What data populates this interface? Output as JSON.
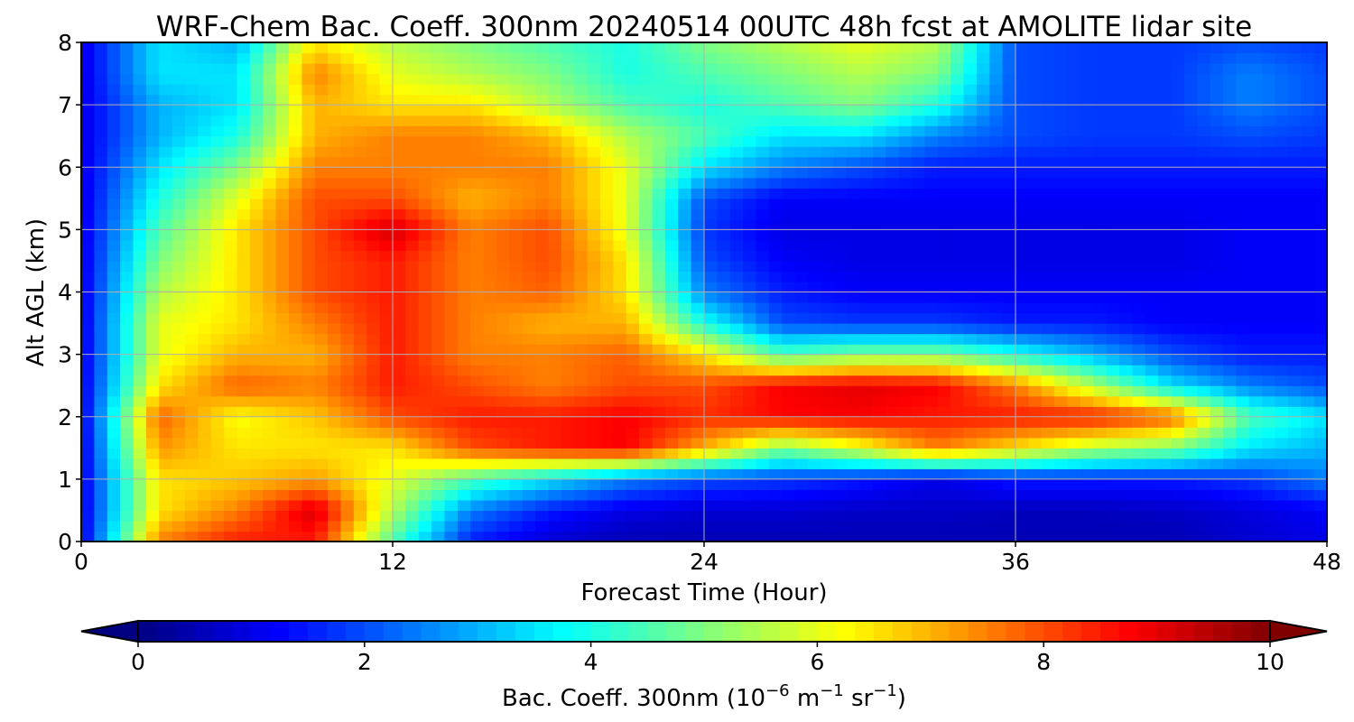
{
  "chart_data": {
    "type": "heatmap",
    "title": "WRF-Chem Bac. Coeff. 300nm  20240514 00UTC 48h fcst at AMOLITE lidar site",
    "xlabel": "Forecast Time (Hour)",
    "ylabel": "Alt AGL (km)",
    "xlim": [
      0,
      48
    ],
    "ylim": [
      0,
      8
    ],
    "x_ticks": [
      "0",
      "12",
      "24",
      "36",
      "48"
    ],
    "y_ticks": [
      "0",
      "1",
      "2",
      "3",
      "4",
      "5",
      "6",
      "7",
      "8"
    ],
    "grid": true,
    "colormap": "jet",
    "x": [
      0,
      3,
      6,
      9,
      12,
      15,
      18,
      21,
      24,
      27,
      30,
      33,
      36,
      39,
      42,
      45,
      48
    ],
    "y": [
      0,
      0.5,
      1,
      1.5,
      2,
      2.5,
      3,
      3.5,
      4,
      4.5,
      5,
      5.5,
      6,
      6.5,
      7,
      7.5,
      8
    ],
    "z": [
      [
        1.0,
        7.5,
        8.5,
        8.5,
        4.5,
        1.5,
        0.8,
        0.5,
        0.5,
        0.5,
        0.5,
        0.5,
        0.5,
        0.5,
        0.5,
        0.8,
        1.0
      ],
      [
        1.0,
        6.5,
        7.5,
        9.2,
        5.5,
        2.5,
        1.5,
        1.0,
        0.8,
        0.8,
        0.7,
        0.7,
        0.6,
        0.6,
        0.7,
        0.9,
        1.2
      ],
      [
        1.0,
        6.5,
        6.8,
        7.2,
        6.0,
        4.5,
        3.5,
        2.5,
        2.0,
        1.8,
        1.5,
        1.0,
        1.5,
        1.5,
        1.5,
        1.8,
        2.5
      ],
      [
        1.0,
        7.3,
        6.5,
        6.5,
        6.5,
        8.0,
        8.5,
        8.8,
        7.0,
        5.0,
        6.0,
        7.5,
        6.5,
        5.5,
        5.0,
        3.5,
        3.0
      ],
      [
        1.0,
        7.8,
        6.2,
        6.8,
        8.0,
        8.5,
        8.5,
        8.8,
        8.3,
        8.7,
        8.8,
        8.5,
        8.5,
        8.5,
        7.8,
        4.5,
        3.5
      ],
      [
        1.0,
        6.5,
        7.8,
        7.5,
        8.5,
        8.0,
        7.5,
        8.0,
        8.0,
        8.8,
        9.0,
        8.8,
        7.5,
        5.5,
        3.5,
        2.5,
        2.0
      ],
      [
        1.0,
        6.0,
        7.0,
        7.0,
        8.5,
        7.5,
        7.5,
        7.8,
        6.5,
        4.5,
        5.0,
        5.0,
        4.0,
        3.0,
        2.0,
        1.5,
        1.5
      ],
      [
        1.0,
        6.0,
        6.5,
        7.5,
        8.5,
        7.5,
        7.0,
        7.0,
        4.0,
        2.0,
        1.8,
        1.8,
        1.5,
        1.5,
        1.2,
        1.2,
        1.2
      ],
      [
        1.0,
        5.5,
        6.5,
        8.0,
        8.5,
        7.5,
        7.8,
        6.5,
        2.5,
        1.5,
        1.2,
        1.2,
        1.2,
        1.2,
        1.2,
        1.2,
        1.2
      ],
      [
        1.0,
        5.0,
        6.5,
        8.0,
        8.5,
        7.5,
        8.0,
        6.5,
        2.0,
        1.2,
        1.0,
        1.0,
        1.0,
        1.0,
        1.0,
        1.2,
        1.2
      ],
      [
        1.0,
        4.5,
        6.5,
        8.0,
        9.2,
        7.5,
        8.0,
        6.0,
        1.8,
        1.0,
        1.0,
        1.0,
        1.0,
        1.0,
        1.0,
        1.2,
        1.2
      ],
      [
        1.0,
        4.0,
        6.0,
        8.0,
        8.0,
        7.0,
        7.5,
        6.0,
        2.0,
        1.2,
        1.2,
        1.2,
        1.2,
        1.2,
        1.2,
        1.2,
        1.2
      ],
      [
        1.0,
        3.5,
        5.0,
        7.5,
        7.5,
        7.5,
        7.5,
        6.0,
        3.5,
        2.5,
        2.0,
        1.5,
        1.5,
        1.5,
        1.5,
        1.5,
        1.5
      ],
      [
        1.0,
        3.0,
        4.0,
        7.0,
        7.5,
        7.5,
        7.0,
        5.5,
        4.5,
        3.5,
        3.5,
        2.5,
        2.0,
        1.8,
        1.8,
        2.0,
        1.8
      ],
      [
        1.0,
        3.0,
        3.5,
        7.0,
        6.5,
        6.5,
        5.5,
        4.5,
        4.0,
        4.5,
        5.0,
        4.0,
        2.0,
        1.8,
        1.8,
        2.5,
        2.0
      ],
      [
        1.0,
        3.5,
        3.5,
        7.5,
        6.0,
        5.5,
        5.0,
        4.0,
        4.5,
        5.0,
        5.5,
        5.0,
        2.0,
        1.8,
        1.8,
        2.5,
        2.0
      ],
      [
        1.0,
        3.5,
        3.0,
        6.5,
        5.5,
        5.0,
        4.5,
        4.0,
        5.0,
        5.5,
        6.0,
        5.5,
        2.0,
        1.8,
        1.8,
        2.0,
        1.8
      ]
    ],
    "colorbar": {
      "label_prefix": "Bac. Coeff. 300nm  (10",
      "label_exp1": "−6",
      "label_mid": " m",
      "label_exp2": "−1",
      "label_mid2": " sr",
      "label_exp3": "−1",
      "label_suffix": ")",
      "range": [
        0,
        10
      ],
      "ticks": [
        "0",
        "2",
        "4",
        "6",
        "8",
        "10"
      ],
      "extend": "both"
    }
  }
}
